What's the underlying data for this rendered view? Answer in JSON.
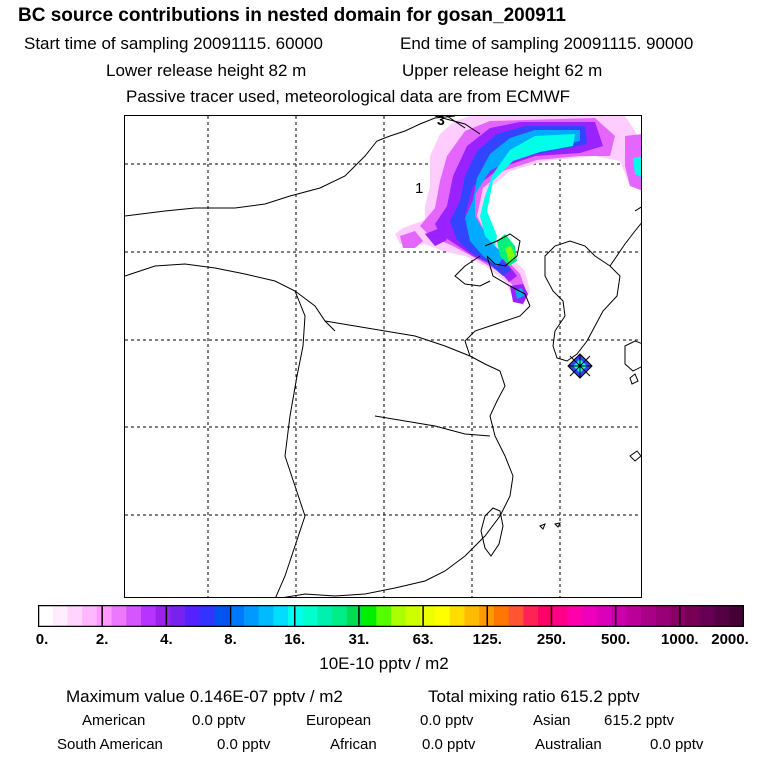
{
  "header": {
    "title": "BC  source contributions in nested domain for gosan_200911",
    "start_label": "Start time of sampling 20091115. 60000",
    "end_label": "End time of sampling 20091115. 90000",
    "lower_label": "Lower release height   82 m",
    "upper_label": "Upper release height   62 m",
    "tracer_note": "Passive tracer used, meteorological data are from ECMWF"
  },
  "map": {
    "labels": [
      "1",
      "3"
    ],
    "receptor": "gosan",
    "plume_colors": [
      "#ff80ff",
      "#c040ff",
      "#8000ff",
      "#2020ff",
      "#00b0ff",
      "#00ffe0",
      "#00f080",
      "#80ff00"
    ]
  },
  "colorbar": {
    "ticks": [
      "0.",
      "2.",
      "4.",
      "8.",
      "16.",
      "31.",
      "63.",
      "125.",
      "250.",
      "500.",
      "1000.",
      "2000."
    ],
    "colors": [
      "#ffffff",
      "#ffeeff",
      "#ffd4ff",
      "#ffb8ff",
      "#ff99ff",
      "#ee77ff",
      "#d555ff",
      "#b833ff",
      "#9922ee",
      "#7722ee",
      "#5522ff",
      "#3333ff",
      "#0055ee",
      "#0077ff",
      "#0099ff",
      "#00bbff",
      "#00ddff",
      "#00ffee",
      "#00ffcc",
      "#00f0b0",
      "#00ee88",
      "#00dd55",
      "#00ee00",
      "#55ff00",
      "#aaff00",
      "#ccff00",
      "#eeff00",
      "#ffff00",
      "#ffdd00",
      "#ffbb00",
      "#ff9900",
      "#ff7700",
      "#ff5533",
      "#ff2255",
      "#ff0066",
      "#ff0088",
      "#ff00aa",
      "#ee00bb",
      "#dd00bb",
      "#cc00aa",
      "#bb0099",
      "#aa0088",
      "#990077",
      "#880066",
      "#770055",
      "#660055",
      "#550044",
      "#440033"
    ],
    "units": "10E-10 pptv / m2"
  },
  "stats": {
    "max_label": "Maximum value  0.146E-07 pptv / m2",
    "total_label": "Total mixing ratio      615.2 pptv",
    "american_label": "American",
    "american_value": "0.0 pptv",
    "european_label": "European",
    "european_value": "0.0 pptv",
    "asian_label": "Asian",
    "asian_value": "615.2 pptv",
    "south_american_label": "South American",
    "south_american_value": "0.0 pptv",
    "african_label": "African",
    "african_value": "0.0 pptv",
    "australian_label": "Australian",
    "australian_value": "0.0 pptv"
  }
}
